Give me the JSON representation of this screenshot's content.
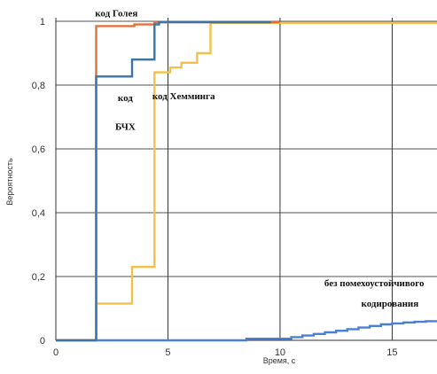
{
  "chart_data": {
    "type": "line",
    "xlabel": "Время, с",
    "ylabel": "Вероятность",
    "xlim": [
      0,
      17
    ],
    "ylim": [
      0,
      1
    ],
    "grid": true,
    "x_ticks": [
      0,
      5,
      10,
      15
    ],
    "x_tick_labels": [
      "0",
      "5",
      "10",
      "15"
    ],
    "y_ticks": [
      0,
      0.2,
      0.4,
      0.6,
      0.8,
      1
    ],
    "y_tick_labels": [
      "0",
      "0,2",
      "0,4",
      "0,6",
      "0,8",
      "1"
    ],
    "series": [
      {
        "color": "#4a7fd4",
        "x": [
          0,
          8.5,
          8.5,
          10.5,
          10.5,
          11.0,
          11.0,
          11.5,
          11.5,
          12.0,
          12.0,
          12.5,
          12.5,
          13.0,
          13.0,
          13.5,
          13.5,
          14.0,
          14.0,
          14.5,
          14.5,
          15.0,
          15.0,
          15.5,
          15.5,
          16.0,
          16.0,
          16.5,
          16.5,
          17.0
        ],
        "y": [
          0,
          0,
          0.005,
          0.005,
          0.01,
          0.01,
          0.015,
          0.015,
          0.02,
          0.02,
          0.025,
          0.025,
          0.03,
          0.03,
          0.035,
          0.035,
          0.04,
          0.04,
          0.045,
          0.045,
          0.05,
          0.05,
          0.053,
          0.053,
          0.056,
          0.056,
          0.058,
          0.058,
          0.06,
          0.06
        ]
      },
      {
        "color": "#f5c04a",
        "x": [
          0,
          1.8,
          1.8,
          3.4,
          3.4,
          4.4,
          4.4,
          5.1,
          5.1,
          5.6,
          5.6,
          6.3,
          6.3,
          6.9,
          6.9,
          17
        ],
        "y": [
          0,
          0,
          0.115,
          0.115,
          0.23,
          0.23,
          0.84,
          0.84,
          0.855,
          0.855,
          0.87,
          0.87,
          0.9,
          0.9,
          0.995,
          0.995
        ]
      },
      {
        "color": "#e2703e",
        "x": [
          0,
          1.8,
          1.8,
          3.5,
          3.5,
          4.4,
          4.4,
          10
        ],
        "y": [
          0,
          0,
          0.985,
          0.985,
          0.99,
          0.99,
          0.997,
          0.997
        ]
      },
      {
        "color": "#3a75a6",
        "x": [
          0,
          1.8,
          1.8,
          3.4,
          3.4,
          4.4,
          4.4,
          4.6,
          4.6,
          9.6
        ],
        "y": [
          0,
          0,
          0.827,
          0.827,
          0.88,
          0.88,
          0.99,
          0.99,
          0.997,
          0.997
        ]
      }
    ],
    "annotations": [
      {
        "text": "код Голея",
        "x": 2.7,
        "y": 1.015
      },
      {
        "text": "код",
        "x": 3.1,
        "y": 0.75
      },
      {
        "text": "БЧХ",
        "x": 3.1,
        "y": 0.66
      },
      {
        "text": "код Хемминга",
        "x": 5.7,
        "y": 0.755
      },
      {
        "text": "без помехоустойчивого",
        "x": 14.2,
        "y": 0.17
      },
      {
        "text": "кодирования",
        "x": 14.9,
        "y": 0.105
      }
    ]
  }
}
